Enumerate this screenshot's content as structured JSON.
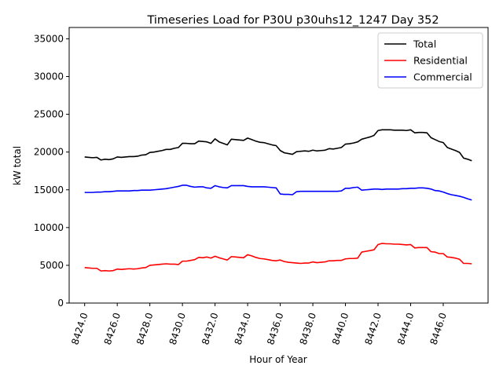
{
  "chart_data": {
    "type": "line",
    "title": "Timeseries Load for P30U p30uhs12_1247  Day 352",
    "xlabel": "Hour of Year",
    "ylabel": "kW total",
    "xlim": [
      8423.05,
      8448.75
    ],
    "ylim": [
      0,
      36500
    ],
    "xticks": [
      8424,
      8426,
      8428,
      8430,
      8432,
      8434,
      8436,
      8438,
      8440,
      8442,
      8444,
      8446
    ],
    "xtick_labels": [
      "8424.0",
      "8426.0",
      "8428.0",
      "8430.0",
      "8432.0",
      "8434.0",
      "8436.0",
      "8438.0",
      "8440.0",
      "8442.0",
      "8444.0",
      "8446.0"
    ],
    "yticks": [
      0,
      5000,
      10000,
      15000,
      20000,
      25000,
      30000,
      35000
    ],
    "ytick_labels": [
      "0",
      "5000",
      "10000",
      "15000",
      "20000",
      "25000",
      "30000",
      "35000"
    ],
    "legend_position": "top-right",
    "x": [
      8424.0,
      8424.25,
      8424.5,
      8424.75,
      8425.0,
      8425.25,
      8425.5,
      8425.75,
      8426.0,
      8426.25,
      8426.5,
      8426.75,
      8427.0,
      8427.25,
      8427.5,
      8427.75,
      8428.0,
      8428.25,
      8428.5,
      8428.75,
      8429.0,
      8429.25,
      8429.5,
      8429.75,
      8430.0,
      8430.25,
      8430.5,
      8430.75,
      8431.0,
      8431.25,
      8431.5,
      8431.75,
      8432.0,
      8432.25,
      8432.5,
      8432.75,
      8433.0,
      8433.25,
      8433.5,
      8433.75,
      8434.0,
      8434.25,
      8434.5,
      8434.75,
      8435.0,
      8435.25,
      8435.5,
      8435.75,
      8436.0,
      8436.25,
      8436.5,
      8436.75,
      8437.0,
      8437.25,
      8437.5,
      8437.75,
      8438.0,
      8438.25,
      8438.5,
      8438.75,
      8439.0,
      8439.25,
      8439.5,
      8439.75,
      8440.0,
      8440.25,
      8440.5,
      8440.75,
      8441.0,
      8441.25,
      8441.5,
      8441.75,
      8442.0,
      8442.25,
      8442.5,
      8442.75,
      8443.0,
      8443.25,
      8443.5,
      8443.75,
      8444.0,
      8444.25,
      8444.5,
      8444.75,
      8445.0,
      8445.25,
      8445.5,
      8445.75,
      8446.0,
      8446.25,
      8446.5,
      8446.75,
      8447.0,
      8447.25,
      8447.5,
      8447.75
    ],
    "series": [
      {
        "name": "Total",
        "color": "#000000",
        "values": [
          19350,
          19300,
          19250,
          19300,
          18950,
          19050,
          19000,
          19100,
          19350,
          19300,
          19350,
          19400,
          19400,
          19450,
          19600,
          19650,
          19950,
          20000,
          20100,
          20200,
          20350,
          20350,
          20500,
          20600,
          21150,
          21150,
          21100,
          21100,
          21450,
          21400,
          21350,
          21150,
          21750,
          21350,
          21150,
          20950,
          21700,
          21650,
          21600,
          21550,
          21850,
          21650,
          21450,
          21300,
          21250,
          21100,
          20950,
          20850,
          20200,
          19900,
          19800,
          19700,
          20050,
          20100,
          20150,
          20100,
          20250,
          20150,
          20200,
          20250,
          20450,
          20400,
          20500,
          20600,
          21050,
          21100,
          21200,
          21350,
          21700,
          21850,
          22000,
          22200,
          22850,
          22950,
          22950,
          22950,
          22900,
          22900,
          22900,
          22850,
          22950,
          22550,
          22600,
          22600,
          22550,
          21900,
          21650,
          21400,
          21250,
          20600,
          20400,
          20200,
          19950,
          19200,
          19050,
          18850
        ]
      },
      {
        "name": "Residential",
        "color": "#ff0000",
        "values": [
          4700,
          4650,
          4600,
          4600,
          4250,
          4300,
          4250,
          4300,
          4500,
          4450,
          4500,
          4550,
          4500,
          4550,
          4650,
          4700,
          5000,
          5050,
          5100,
          5150,
          5200,
          5150,
          5150,
          5100,
          5550,
          5550,
          5650,
          5750,
          6050,
          6000,
          6100,
          5950,
          6200,
          6000,
          5850,
          5700,
          6150,
          6100,
          6050,
          6000,
          6400,
          6250,
          6050,
          5900,
          5850,
          5750,
          5650,
          5600,
          5700,
          5500,
          5400,
          5350,
          5300,
          5250,
          5300,
          5300,
          5450,
          5350,
          5400,
          5450,
          5600,
          5600,
          5650,
          5650,
          5850,
          5900,
          5900,
          5950,
          6750,
          6850,
          6950,
          7050,
          7750,
          7900,
          7850,
          7850,
          7800,
          7800,
          7750,
          7700,
          7750,
          7300,
          7350,
          7350,
          7350,
          6800,
          6750,
          6550,
          6550,
          6100,
          6050,
          5950,
          5800,
          5250,
          5250,
          5200
        ]
      },
      {
        "name": "Commercial",
        "color": "#0000ff",
        "values": [
          14650,
          14650,
          14650,
          14700,
          14700,
          14750,
          14750,
          14800,
          14850,
          14850,
          14850,
          14850,
          14900,
          14900,
          14950,
          14950,
          14950,
          15000,
          15050,
          15100,
          15150,
          15250,
          15350,
          15450,
          15600,
          15600,
          15450,
          15350,
          15400,
          15400,
          15250,
          15200,
          15550,
          15400,
          15300,
          15250,
          15550,
          15550,
          15550,
          15550,
          15450,
          15400,
          15400,
          15400,
          15400,
          15350,
          15300,
          15250,
          14450,
          14400,
          14400,
          14350,
          14750,
          14800,
          14800,
          14800,
          14800,
          14800,
          14800,
          14800,
          14800,
          14800,
          14800,
          14850,
          15200,
          15200,
          15300,
          15350,
          14950,
          15000,
          15050,
          15100,
          15100,
          15050,
          15100,
          15100,
          15100,
          15100,
          15150,
          15150,
          15200,
          15200,
          15250,
          15250,
          15200,
          15100,
          14900,
          14850,
          14700,
          14500,
          14350,
          14250,
          14150,
          14000,
          13800,
          13650
        ]
      }
    ]
  }
}
